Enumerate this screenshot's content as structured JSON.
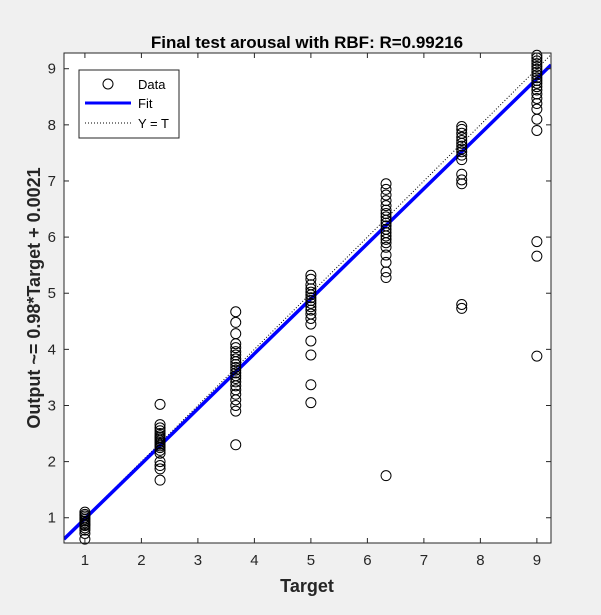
{
  "chart_data": {
    "type": "scatter",
    "title": "Final test arousal with RBF: R=0.99216",
    "xlabel": "Target",
    "ylabel": "Output ~= 0.98*Target + 0.0021",
    "xlim": [
      0.63,
      9.25
    ],
    "ylim": [
      0.55,
      9.28
    ],
    "xticks": [
      1,
      2,
      3,
      4,
      5,
      6,
      7,
      8,
      9
    ],
    "yticks": [
      1,
      2,
      3,
      4,
      5,
      6,
      7,
      8,
      9
    ],
    "grid": false,
    "legend_position": "top-left",
    "series": [
      {
        "name": "Data",
        "marker": "circle",
        "color": "#000000",
        "x_levels": [
          1,
          2.33,
          3.67,
          5,
          6.33,
          7.67,
          9
        ],
        "points": [
          [
            1,
            0.62
          ],
          [
            1,
            0.72
          ],
          [
            1,
            0.78
          ],
          [
            1,
            0.82
          ],
          [
            1,
            0.86
          ],
          [
            1,
            0.88
          ],
          [
            1,
            0.91
          ],
          [
            1,
            0.94
          ],
          [
            1,
            0.97
          ],
          [
            1,
            1.0
          ],
          [
            1,
            1.03
          ],
          [
            1,
            1.06
          ],
          [
            1,
            1.1
          ],
          [
            2.33,
            1.67
          ],
          [
            2.33,
            1.87
          ],
          [
            2.33,
            1.93
          ],
          [
            2.33,
            2.0
          ],
          [
            2.33,
            2.15
          ],
          [
            2.33,
            2.2
          ],
          [
            2.33,
            2.25
          ],
          [
            2.33,
            2.28
          ],
          [
            2.33,
            2.31
          ],
          [
            2.33,
            2.34
          ],
          [
            2.33,
            2.37
          ],
          [
            2.33,
            2.4
          ],
          [
            2.33,
            2.43
          ],
          [
            2.33,
            2.46
          ],
          [
            2.33,
            2.5
          ],
          [
            2.33,
            2.55
          ],
          [
            2.33,
            2.6
          ],
          [
            2.33,
            2.66
          ],
          [
            2.33,
            3.02
          ],
          [
            3.67,
            2.3
          ],
          [
            3.67,
            2.9
          ],
          [
            3.67,
            3.0
          ],
          [
            3.67,
            3.1
          ],
          [
            3.67,
            3.2
          ],
          [
            3.67,
            3.28
          ],
          [
            3.67,
            3.35
          ],
          [
            3.67,
            3.42
          ],
          [
            3.67,
            3.48
          ],
          [
            3.67,
            3.53
          ],
          [
            3.67,
            3.58
          ],
          [
            3.67,
            3.63
          ],
          [
            3.67,
            3.68
          ],
          [
            3.67,
            3.73
          ],
          [
            3.67,
            3.78
          ],
          [
            3.67,
            3.83
          ],
          [
            3.67,
            3.9
          ],
          [
            3.67,
            3.96
          ],
          [
            3.67,
            4.03
          ],
          [
            3.67,
            4.1
          ],
          [
            3.67,
            4.28
          ],
          [
            3.67,
            4.48
          ],
          [
            3.67,
            4.67
          ],
          [
            5,
            3.05
          ],
          [
            5,
            3.37
          ],
          [
            5,
            3.9
          ],
          [
            5,
            4.15
          ],
          [
            5,
            4.45
          ],
          [
            5,
            4.55
          ],
          [
            5,
            4.63
          ],
          [
            5,
            4.7
          ],
          [
            5,
            4.76
          ],
          [
            5,
            4.82
          ],
          [
            5,
            4.87
          ],
          [
            5,
            4.92
          ],
          [
            5,
            4.97
          ],
          [
            5,
            5.02
          ],
          [
            5,
            5.08
          ],
          [
            5,
            5.15
          ],
          [
            5,
            5.25
          ],
          [
            5,
            5.32
          ],
          [
            6.33,
            1.75
          ],
          [
            6.33,
            5.28
          ],
          [
            6.33,
            5.38
          ],
          [
            6.33,
            5.55
          ],
          [
            6.33,
            5.68
          ],
          [
            6.33,
            5.82
          ],
          [
            6.33,
            5.9
          ],
          [
            6.33,
            5.96
          ],
          [
            6.33,
            6.02
          ],
          [
            6.33,
            6.08
          ],
          [
            6.33,
            6.14
          ],
          [
            6.33,
            6.2
          ],
          [
            6.33,
            6.25
          ],
          [
            6.33,
            6.3
          ],
          [
            6.33,
            6.36
          ],
          [
            6.33,
            6.42
          ],
          [
            6.33,
            6.48
          ],
          [
            6.33,
            6.56
          ],
          [
            6.33,
            6.65
          ],
          [
            6.33,
            6.75
          ],
          [
            6.33,
            6.85
          ],
          [
            6.33,
            6.95
          ],
          [
            7.67,
            4.73
          ],
          [
            7.67,
            4.8
          ],
          [
            7.67,
            6.95
          ],
          [
            7.67,
            7.02
          ],
          [
            7.67,
            7.12
          ],
          [
            7.67,
            7.38
          ],
          [
            7.67,
            7.46
          ],
          [
            7.67,
            7.52
          ],
          [
            7.67,
            7.57
          ],
          [
            7.67,
            7.62
          ],
          [
            7.67,
            7.67
          ],
          [
            7.67,
            7.72
          ],
          [
            7.67,
            7.78
          ],
          [
            7.67,
            7.85
          ],
          [
            7.67,
            7.92
          ],
          [
            7.67,
            7.97
          ],
          [
            9,
            3.88
          ],
          [
            9,
            5.66
          ],
          [
            9,
            5.92
          ],
          [
            9,
            7.9
          ],
          [
            9,
            8.1
          ],
          [
            9,
            8.28
          ],
          [
            9,
            8.38
          ],
          [
            9,
            8.47
          ],
          [
            9,
            8.55
          ],
          [
            9,
            8.62
          ],
          [
            9,
            8.68
          ],
          [
            9,
            8.74
          ],
          [
            9,
            8.79
          ],
          [
            9,
            8.84
          ],
          [
            9,
            8.89
          ],
          [
            9,
            8.94
          ],
          [
            9,
            8.99
          ],
          [
            9,
            9.04
          ],
          [
            9,
            9.09
          ],
          [
            9,
            9.14
          ],
          [
            9,
            9.19
          ],
          [
            9,
            9.24
          ]
        ]
      },
      {
        "name": "Fit",
        "type": "line",
        "color": "#0000ff",
        "slope": 0.98,
        "intercept": 0.0021
      },
      {
        "name": "Y = T",
        "type": "line",
        "style": "dotted",
        "color": "#000000",
        "slope": 1,
        "intercept": 0
      }
    ]
  }
}
